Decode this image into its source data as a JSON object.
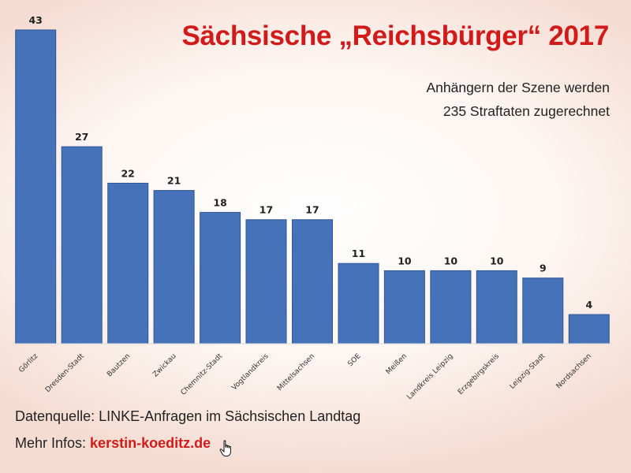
{
  "header": {
    "title": "Sächsische „Reichsbürger“ 2017",
    "subtitle_line1": "Anhängern der Szene werden",
    "subtitle_line2": "235 Straftaten zugerechnet"
  },
  "footer": {
    "source": "Datenquelle: LINKE-Anfragen im Sächsischen Landtag",
    "more_label": "Mehr Infos: ",
    "more_link": "kerstin-koeditz.de",
    "cursor_icon": "hand-pointer-icon"
  },
  "colors": {
    "bar": "#4672b9",
    "bar_stroke": "#2f5597",
    "title": "#d11b1b",
    "link": "#d11b1b"
  },
  "chart_data": {
    "type": "bar",
    "title": "Sächsische „Reichsbürger“ 2017",
    "xlabel": "",
    "ylabel": "",
    "ylim": [
      0,
      43
    ],
    "grid": false,
    "legend": "none",
    "categories": [
      "Görlitz",
      "Dresden-Stadt",
      "Bautzen",
      "Zwickau",
      "Chemnitz-Stadt",
      "Vogtlandkreis",
      "Mittelsachsen",
      "SOE",
      "Meißen",
      "Landkreis Leipzig",
      "Erzgebirgskreis",
      "Leipzig-Stadt",
      "Nordsachsen"
    ],
    "values": [
      43,
      27,
      22,
      21,
      18,
      17,
      17,
      11,
      10,
      10,
      10,
      9,
      4
    ]
  }
}
